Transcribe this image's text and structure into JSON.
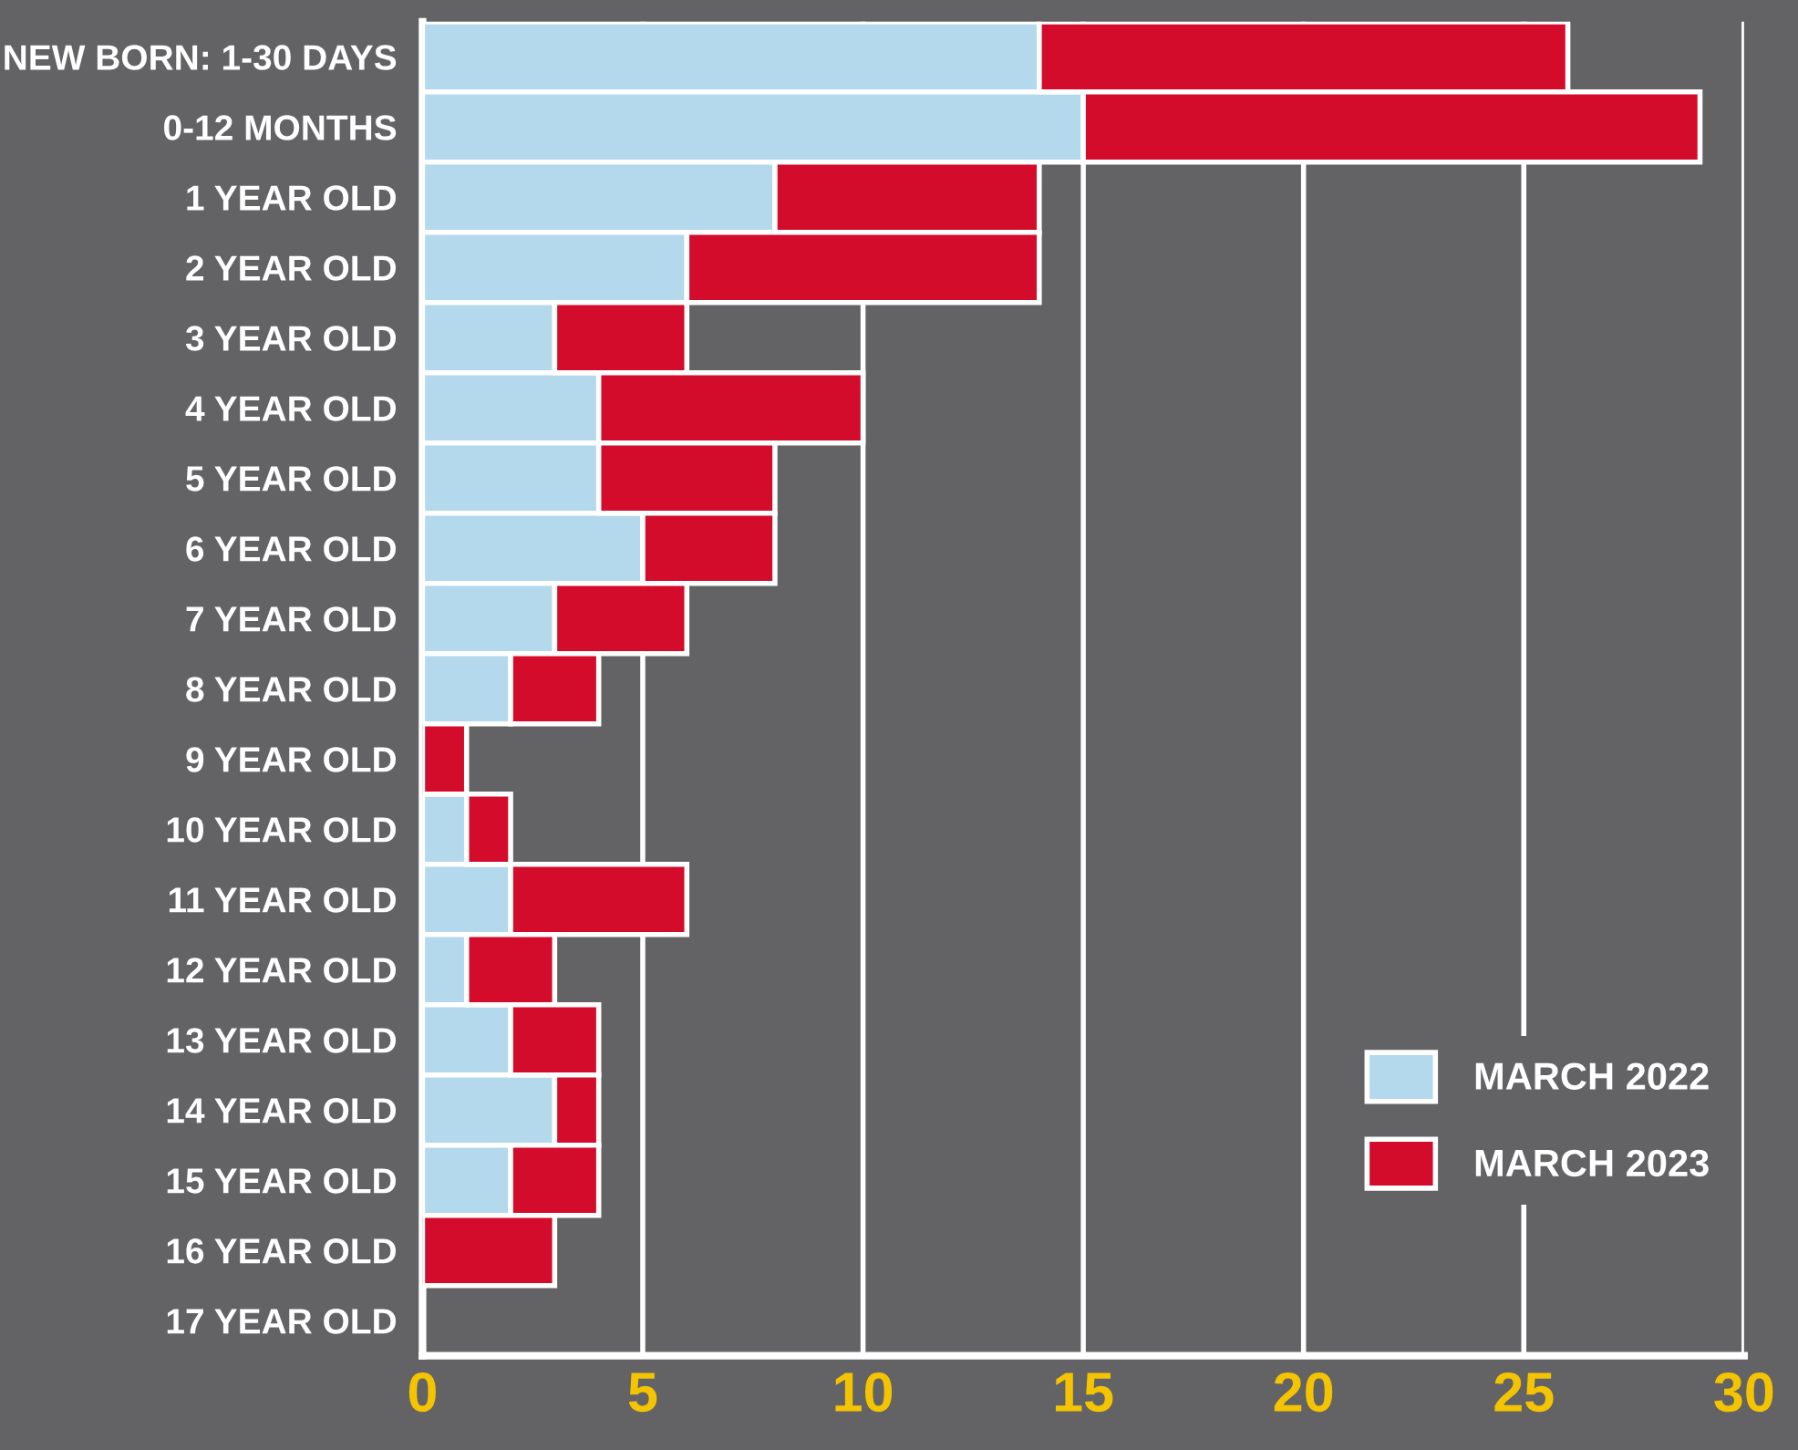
{
  "chart_data": {
    "type": "bar",
    "orientation": "horizontal",
    "stacked": true,
    "categories": [
      "NEW BORN: 1-30 DAYS",
      "0-12 MONTHS",
      "1 YEAR OLD",
      "2 YEAR OLD",
      "3 YEAR OLD",
      "4 YEAR OLD",
      "5 YEAR OLD",
      "6 YEAR OLD",
      "7 YEAR OLD",
      "8 YEAR OLD",
      "9 YEAR OLD",
      "10 YEAR OLD",
      "11 YEAR OLD",
      "12 YEAR OLD",
      "13 YEAR OLD",
      "14 YEAR OLD",
      "15 YEAR OLD",
      "16 YEAR OLD",
      "17 YEAR OLD"
    ],
    "series": [
      {
        "name": "MARCH 2022",
        "color": "#b4d8ec",
        "values": [
          14,
          15,
          8,
          6,
          3,
          4,
          4,
          5,
          3,
          2,
          0,
          1,
          2,
          1,
          2,
          3,
          2,
          0,
          0
        ]
      },
      {
        "name": "MARCH 2023",
        "color": "#d40c2c",
        "values": [
          12,
          14,
          6,
          8,
          3,
          6,
          4,
          3,
          3,
          2,
          1,
          1,
          4,
          2,
          2,
          1,
          2,
          3,
          0
        ]
      }
    ],
    "xlim": [
      0,
      30
    ],
    "xticks": [
      0,
      5,
      10,
      15,
      20,
      25,
      30
    ],
    "grid": "x",
    "legend": "bottom right"
  }
}
